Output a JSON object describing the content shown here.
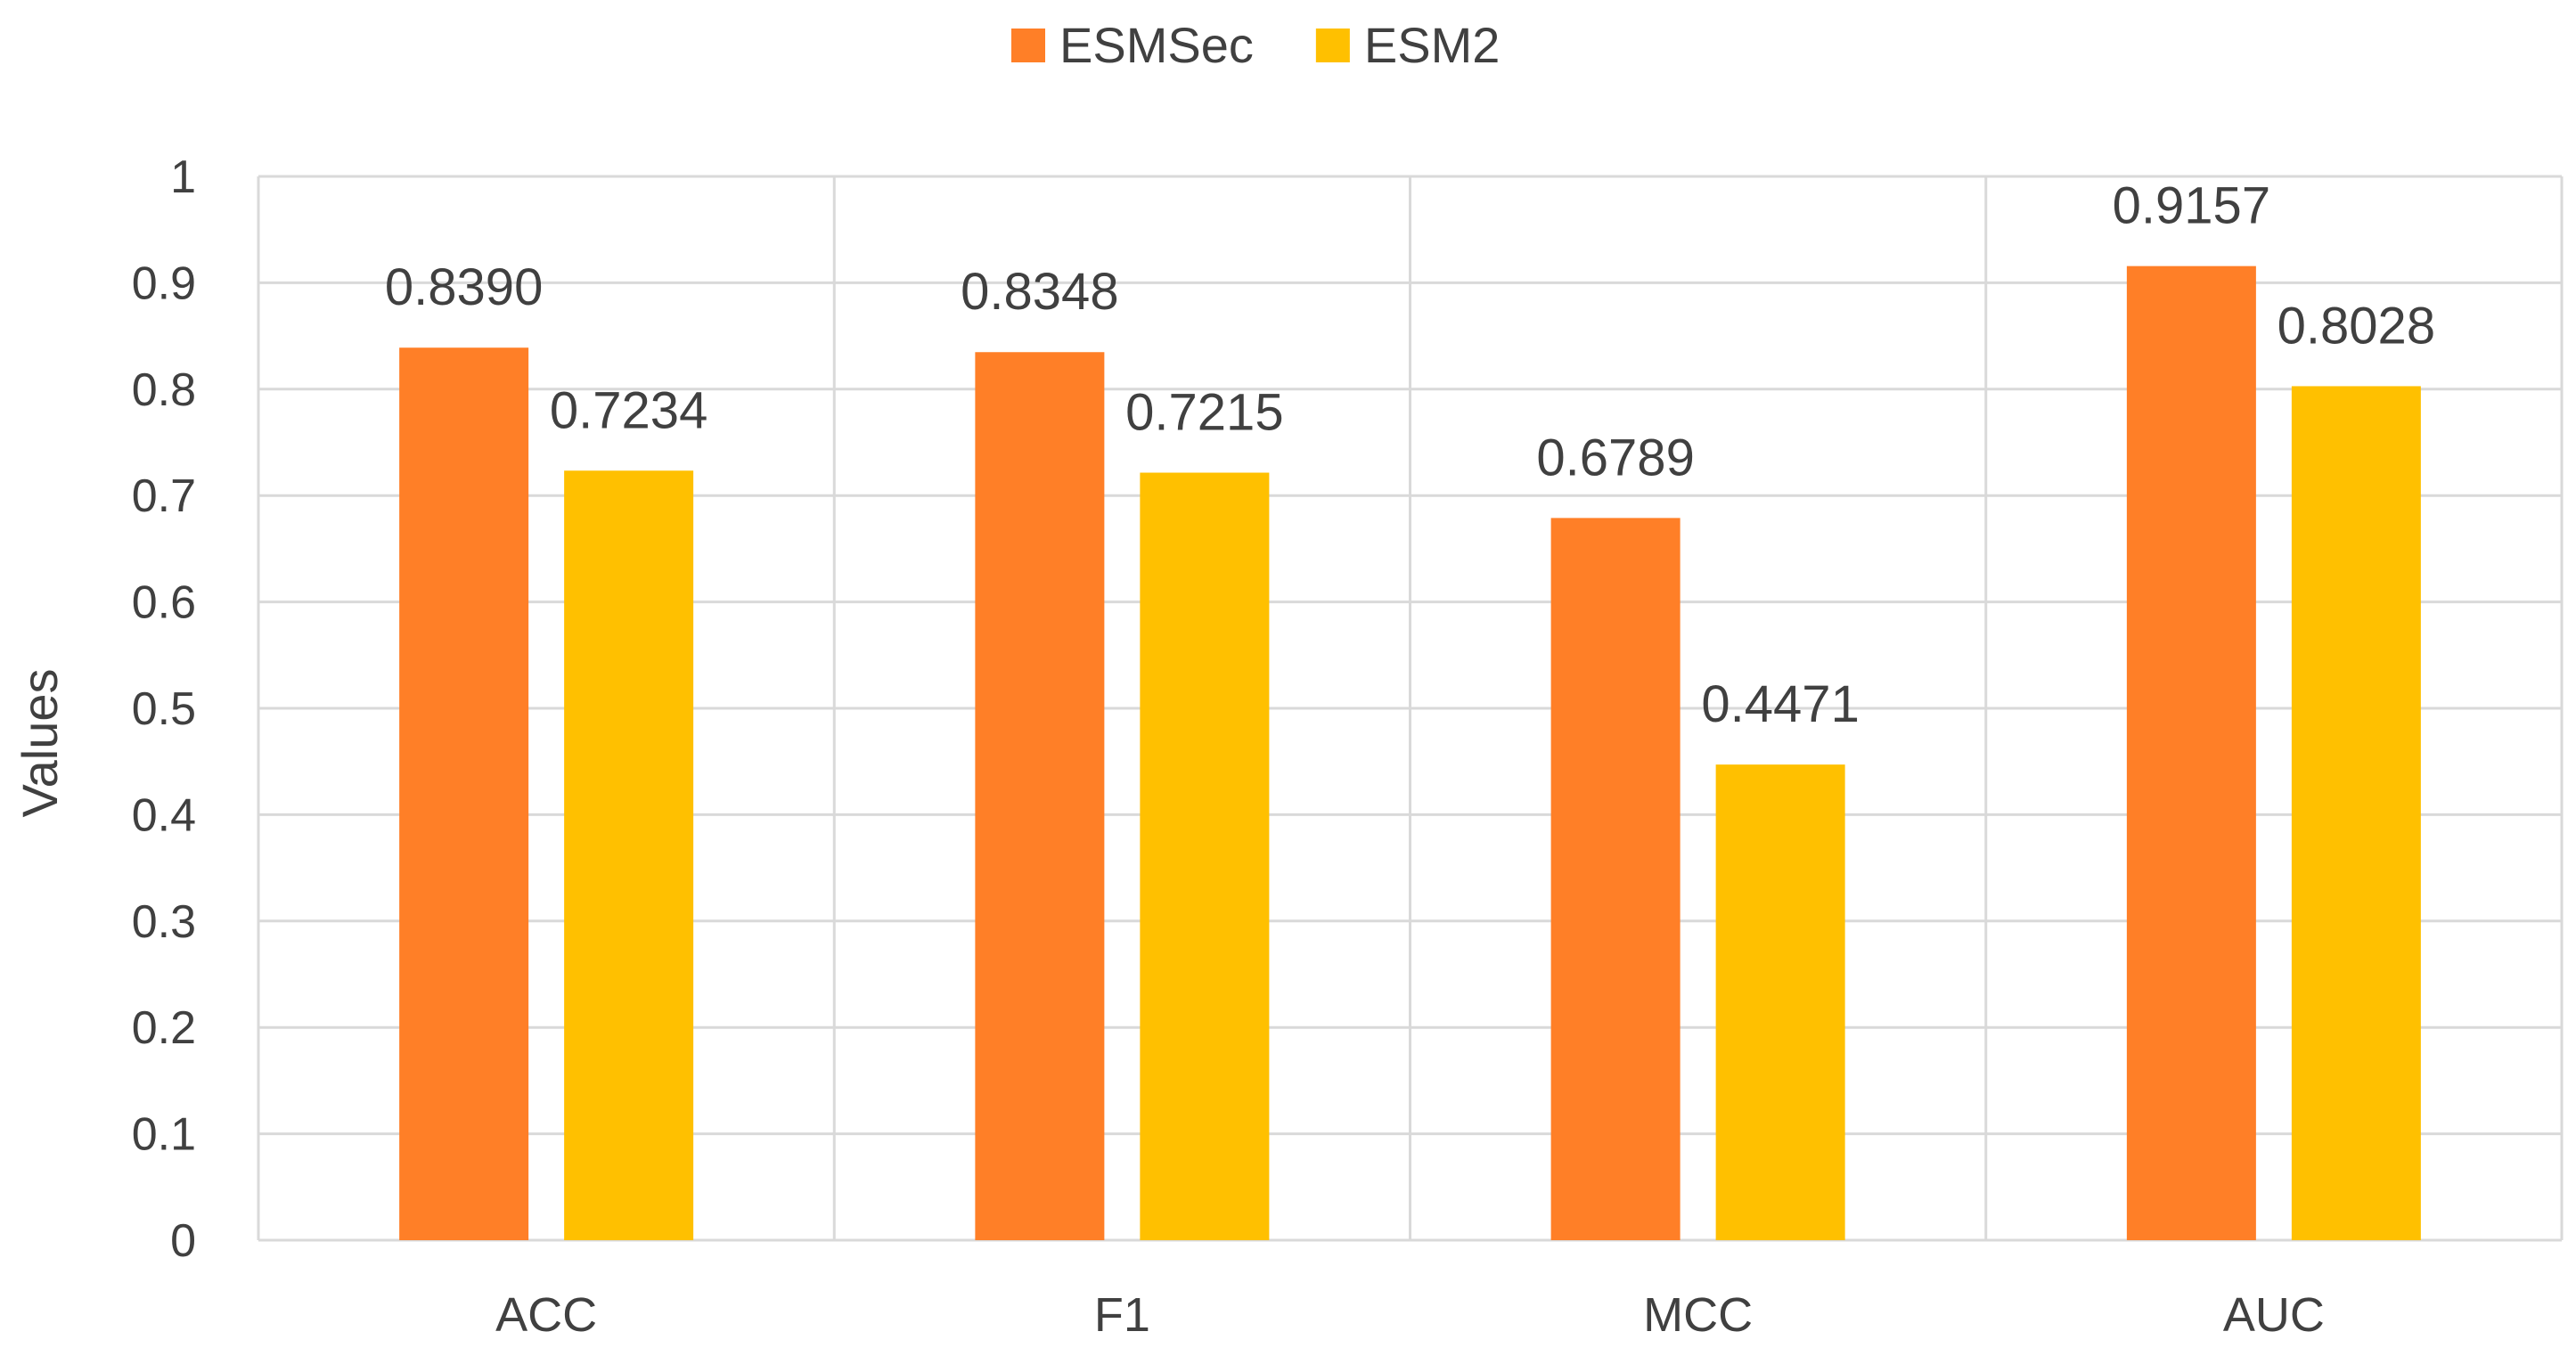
{
  "chart_data": {
    "type": "bar",
    "title": "",
    "xlabel": "",
    "ylabel": "Values",
    "categories": [
      "ACC",
      "F1",
      "MCC",
      "AUC"
    ],
    "series": [
      {
        "name": "ESMSec",
        "color": "#FF7F27",
        "values": [
          0.839,
          0.8348,
          0.6789,
          0.9157
        ],
        "labels": [
          "0.8390",
          "0.8348",
          "0.6789",
          "0.9157"
        ]
      },
      {
        "name": "ESM2",
        "color": "#FFC000",
        "values": [
          0.7234,
          0.7215,
          0.4471,
          0.8028
        ],
        "labels": [
          "0.7234",
          "0.7215",
          "0.4471",
          "0.8028"
        ]
      }
    ],
    "ylim": [
      0,
      1
    ],
    "yticks": [
      0,
      0.1,
      0.2,
      0.3,
      0.4,
      0.5,
      0.6,
      0.7,
      0.8,
      0.9,
      1
    ],
    "ytick_labels": [
      "0",
      "0.1",
      "0.2",
      "0.3",
      "0.4",
      "0.5",
      "0.6",
      "0.7",
      "0.8",
      "0.9",
      "1"
    ],
    "grid": true,
    "legend_position": "top-center"
  }
}
